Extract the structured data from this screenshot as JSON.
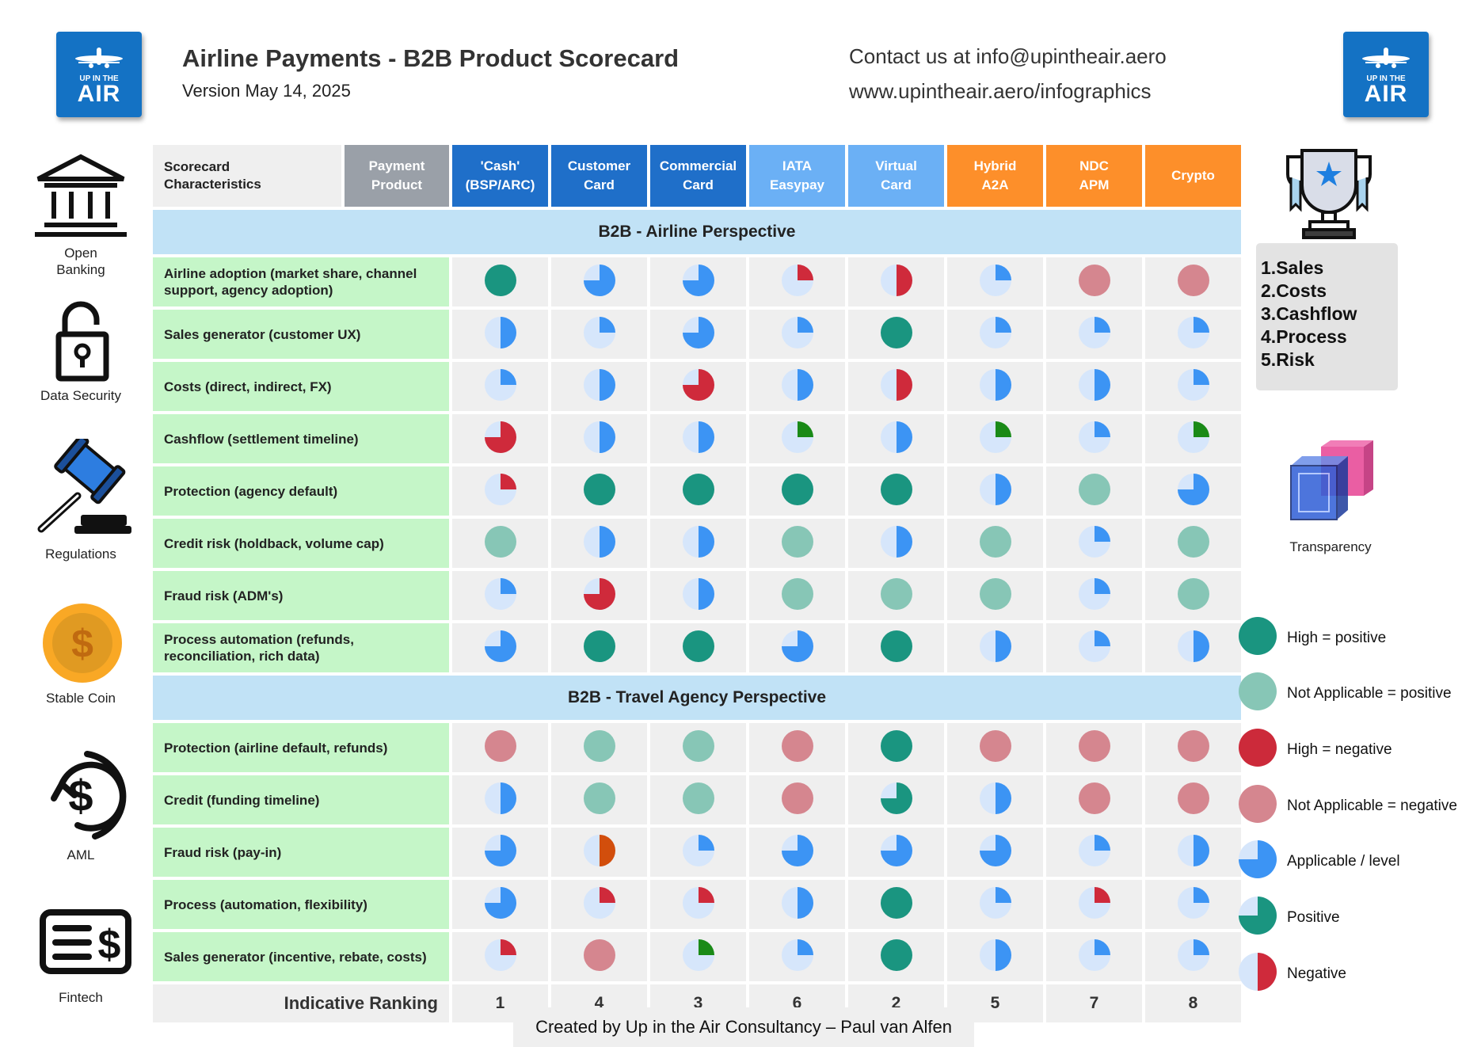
{
  "header": {
    "title": "Airline Payments - B2B Product Scorecard",
    "version": "Version May 14, 2025",
    "contact": "Contact us at info@upintheair.aero",
    "website": "www.upintheair.aero/infographics"
  },
  "logo": {
    "line1": "UP IN THE",
    "line2": "AIR",
    "color": "#1472c4"
  },
  "side_icons": [
    {
      "name": "bank-icon",
      "label_lines": [
        "Open",
        "Banking"
      ]
    },
    {
      "name": "padlock-icon",
      "label_lines": [
        "Data Security"
      ]
    },
    {
      "name": "gavel-icon",
      "label_lines": [
        "Regulations"
      ]
    },
    {
      "name": "coin-icon",
      "label_lines": [
        "Stable Coin"
      ]
    },
    {
      "name": "money-cycle-icon",
      "label_lines": [
        "AML"
      ]
    },
    {
      "name": "cheque-icon",
      "label_lines": [
        "Fintech"
      ]
    }
  ],
  "table": {
    "char_header_lines": [
      "Scorecard",
      "Characteristics"
    ],
    "product_header_lines": [
      "Payment",
      "Product"
    ],
    "columns": [
      {
        "lines": [
          "'Cash'",
          "(BSP/ARC)"
        ],
        "style": "dark"
      },
      {
        "lines": [
          "Customer",
          "Card"
        ],
        "style": "dark"
      },
      {
        "lines": [
          "Commercial",
          "Card"
        ],
        "style": "dark"
      },
      {
        "lines": [
          "IATA",
          "Easypay"
        ],
        "style": "light"
      },
      {
        "lines": [
          "Virtual",
          "Card"
        ],
        "style": "light"
      },
      {
        "lines": [
          "Hybrid",
          "A2A"
        ],
        "style": "orange"
      },
      {
        "lines": [
          "NDC",
          "APM"
        ],
        "style": "orange"
      },
      {
        "lines": [
          "Crypto"
        ],
        "style": "orange"
      }
    ],
    "sections": [
      {
        "title": "B2B - Airline Perspective",
        "rows": [
          {
            "label": "Airline adoption (market share, channel support, agency adoption)",
            "cells": [
              [
                "full",
                "teal"
              ],
              [
                "q75",
                "blue"
              ],
              [
                "q75",
                "blue"
              ],
              [
                "q25",
                "red"
              ],
              [
                "q50",
                "red"
              ],
              [
                "q25",
                "blue"
              ],
              [
                "full",
                "pink"
              ],
              [
                "full",
                "pink"
              ]
            ]
          },
          {
            "label": "Sales generator (customer UX)",
            "cells": [
              [
                "q50",
                "blue"
              ],
              [
                "q25",
                "blue"
              ],
              [
                "q75",
                "blue"
              ],
              [
                "q25",
                "blue"
              ],
              [
                "full",
                "teal"
              ],
              [
                "q25",
                "blue"
              ],
              [
                "q25",
                "blue"
              ],
              [
                "q25",
                "blue"
              ]
            ]
          },
          {
            "label": "Costs (direct, indirect, FX)",
            "cells": [
              [
                "q25",
                "blue"
              ],
              [
                "q50",
                "blue"
              ],
              [
                "q75",
                "red"
              ],
              [
                "q50",
                "blue"
              ],
              [
                "q50",
                "red"
              ],
              [
                "q50",
                "blue"
              ],
              [
                "q50",
                "blue"
              ],
              [
                "q25",
                "blue"
              ]
            ]
          },
          {
            "label": "Cashflow (settlement timeline)",
            "cells": [
              [
                "q75",
                "red"
              ],
              [
                "q50",
                "blue"
              ],
              [
                "q50",
                "blue"
              ],
              [
                "q25",
                "green"
              ],
              [
                "q50",
                "blue"
              ],
              [
                "q25",
                "green"
              ],
              [
                "q25",
                "blue"
              ],
              [
                "q25",
                "green"
              ]
            ]
          },
          {
            "label": "Protection (agency default)",
            "cells": [
              [
                "q25",
                "red"
              ],
              [
                "full",
                "teal"
              ],
              [
                "full",
                "teal"
              ],
              [
                "full",
                "teal"
              ],
              [
                "full",
                "teal"
              ],
              [
                "q50",
                "blue"
              ],
              [
                "full",
                "lteal"
              ],
              [
                "q75",
                "blue"
              ]
            ]
          },
          {
            "label": "Credit risk (holdback, volume cap)",
            "cells": [
              [
                "full",
                "lteal"
              ],
              [
                "q50",
                "blue"
              ],
              [
                "q50",
                "blue"
              ],
              [
                "full",
                "lteal"
              ],
              [
                "q50",
                "blue"
              ],
              [
                "full",
                "lteal"
              ],
              [
                "q25",
                "blue"
              ],
              [
                "full",
                "lteal"
              ]
            ]
          },
          {
            "label": "Fraud risk (ADM's)",
            "cells": [
              [
                "q25",
                "blue"
              ],
              [
                "q75",
                "red"
              ],
              [
                "q50",
                "blue"
              ],
              [
                "full",
                "lteal"
              ],
              [
                "full",
                "lteal"
              ],
              [
                "full",
                "lteal"
              ],
              [
                "q25",
                "blue"
              ],
              [
                "full",
                "lteal"
              ]
            ]
          },
          {
            "label": "Process automation (refunds, reconciliation, rich data)",
            "cells": [
              [
                "q75",
                "blue"
              ],
              [
                "full",
                "teal"
              ],
              [
                "full",
                "teal"
              ],
              [
                "q75",
                "blue"
              ],
              [
                "full",
                "teal"
              ],
              [
                "q50",
                "blue"
              ],
              [
                "q25",
                "blue"
              ],
              [
                "q50",
                "blue"
              ]
            ]
          }
        ]
      },
      {
        "title": "B2B - Travel Agency Perspective",
        "rows": [
          {
            "label": "Protection (airline default, refunds)",
            "cells": [
              [
                "full",
                "pink"
              ],
              [
                "full",
                "lteal"
              ],
              [
                "full",
                "lteal"
              ],
              [
                "full",
                "pink"
              ],
              [
                "full",
                "teal"
              ],
              [
                "full",
                "pink"
              ],
              [
                "full",
                "pink"
              ],
              [
                "full",
                "pink"
              ]
            ]
          },
          {
            "label": "Credit (funding timeline)",
            "cells": [
              [
                "q50",
                "blue"
              ],
              [
                "full",
                "lteal"
              ],
              [
                "full",
                "lteal"
              ],
              [
                "full",
                "pink"
              ],
              [
                "q75",
                "teal"
              ],
              [
                "q50",
                "blue"
              ],
              [
                "full",
                "pink"
              ],
              [
                "full",
                "pink"
              ]
            ]
          },
          {
            "label": "Fraud risk (pay-in)",
            "cells": [
              [
                "q75",
                "blue"
              ],
              [
                "q50",
                "orange"
              ],
              [
                "q25",
                "blue"
              ],
              [
                "q75",
                "blue"
              ],
              [
                "q75",
                "blue"
              ],
              [
                "q75",
                "blue"
              ],
              [
                "q25",
                "blue"
              ],
              [
                "q50",
                "blue"
              ]
            ]
          },
          {
            "label": "Process (automation, flexibility)",
            "cells": [
              [
                "q75",
                "blue"
              ],
              [
                "q25",
                "red"
              ],
              [
                "q25",
                "red"
              ],
              [
                "q50",
                "blue"
              ],
              [
                "full",
                "teal"
              ],
              [
                "q25",
                "blue"
              ],
              [
                "q25",
                "red"
              ],
              [
                "q25",
                "blue"
              ]
            ]
          },
          {
            "label": "Sales generator (incentive, rebate, costs)",
            "cells": [
              [
                "q25",
                "red"
              ],
              [
                "full",
                "pink"
              ],
              [
                "q25",
                "green"
              ],
              [
                "q25",
                "blue"
              ],
              [
                "full",
                "teal"
              ],
              [
                "q50",
                "blue"
              ],
              [
                "q25",
                "blue"
              ],
              [
                "q25",
                "blue"
              ]
            ]
          }
        ]
      }
    ],
    "ranking_label": "Indicative Ranking",
    "rankings": [
      "1",
      "4",
      "3",
      "6",
      "2",
      "5",
      "7",
      "8"
    ]
  },
  "criteria": [
    "Sales",
    "Costs",
    "Cashflow",
    "Process",
    "Risk"
  ],
  "transparency_label": "Transparency",
  "legend": [
    {
      "symbol": [
        "full",
        "teal"
      ],
      "label": "High = positive"
    },
    {
      "symbol": [
        "full",
        "lteal"
      ],
      "label": "Not Applicable = positive"
    },
    {
      "symbol": [
        "full",
        "red2"
      ],
      "label": "High = negative"
    },
    {
      "symbol": [
        "full",
        "pink"
      ],
      "label": "Not Applicable = negative"
    },
    {
      "symbol": [
        "q75",
        "blue"
      ],
      "label": "Applicable / level"
    },
    {
      "symbol": [
        "q75",
        "teal"
      ],
      "label": "Positive"
    },
    {
      "symbol": [
        "q50",
        "red"
      ],
      "label": "Negative"
    }
  ],
  "colors": {
    "teal": "#1a9580",
    "lteal": "#87c6b6",
    "pink": "#d5868f",
    "red": "#cf2a3b",
    "red2": "#cc2a3a",
    "blue": "#3c94f4",
    "green": "#1a8a17",
    "orange": "#d24e0c",
    "bg_disc": "#d6e6fb"
  },
  "footer": "Created by Up in the Air Consultancy – Paul van Alfen"
}
